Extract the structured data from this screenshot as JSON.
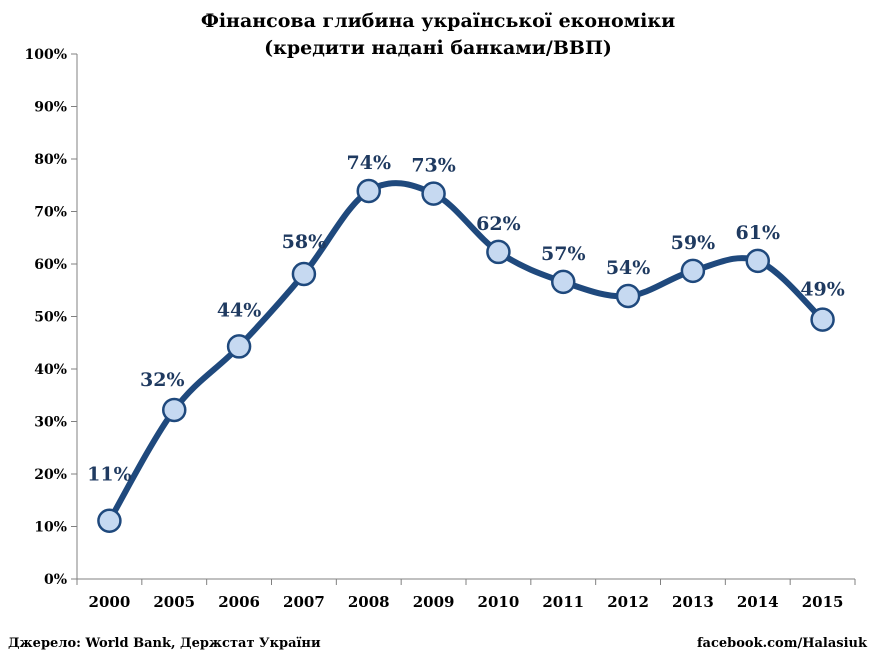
{
  "chart_data": {
    "type": "line",
    "title": [
      "Фінансова глибина української економіки",
      "(кредити надані банками/ВВП)"
    ],
    "xlabel": "",
    "ylabel": "",
    "categories": [
      "2000",
      "2005",
      "2006",
      "2007",
      "2008",
      "2009",
      "2010",
      "2011",
      "2012",
      "2013",
      "2014",
      "2015"
    ],
    "values": [
      11.1,
      32.2,
      44.3,
      58.1,
      73.9,
      73.4,
      62.3,
      56.6,
      53.9,
      58.7,
      60.6,
      49.4
    ],
    "data_labels": [
      "11%",
      "32%",
      "44%",
      "58%",
      "74%",
      "73%",
      "62%",
      "57%",
      "54%",
      "59%",
      "61%",
      "49%"
    ],
    "ylim": [
      0,
      100
    ],
    "yticks": [
      "0%",
      "10%",
      "20%",
      "30%",
      "40%",
      "50%",
      "60%",
      "70%",
      "80%",
      "90%",
      "100%"
    ],
    "grid": false,
    "legend": "none",
    "line_color": "#1f497d",
    "marker_fill": "#c6d9f1",
    "label_color": "#1f3a60"
  },
  "footer": {
    "source": "Джерело: World Bank, Держстат України",
    "credit": "facebook.com/Halasiuk"
  }
}
